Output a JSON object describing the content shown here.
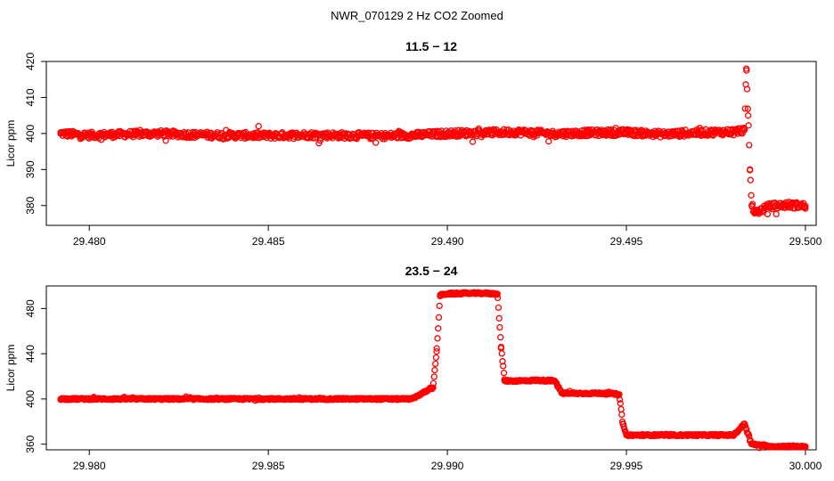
{
  "figure": {
    "title": "NWR_070129  2 Hz CO2 Zoomed"
  },
  "chart_data": [
    {
      "type": "scatter",
      "title": "11.5 − 12",
      "xlabel": "",
      "ylabel": "Licor ppm",
      "xlim": [
        29.4788,
        29.5003
      ],
      "ylim": [
        374.5,
        420
      ],
      "xticks": [
        29.48,
        29.485,
        29.49,
        29.495,
        29.5
      ],
      "xtick_labels": [
        "29.480",
        "29.485",
        "29.490",
        "29.495",
        "29.500"
      ],
      "yticks": [
        380,
        390,
        400,
        410,
        420
      ],
      "ytick_labels": [
        "380",
        "390",
        "400",
        "410",
        "420"
      ],
      "marker": "open-circle",
      "color": "#ff0000",
      "grid": false,
      "series": [
        {
          "x": [
            29.4792,
            29.48,
            29.481,
            29.482,
            29.483,
            29.484,
            29.485,
            29.486,
            29.487,
            29.488,
            29.489,
            29.49,
            29.491,
            29.492,
            29.493,
            29.494,
            29.495,
            29.496,
            29.497,
            29.498,
            29.4983,
            29.49835,
            29.4984,
            29.49845,
            29.4985,
            29.4986,
            29.499,
            29.4995,
            29.5
          ],
          "y": [
            400,
            399.5,
            399.8,
            400,
            399.6,
            399.5,
            399.4,
            399.6,
            399.5,
            399.3,
            399.5,
            400,
            400.2,
            400.4,
            399.9,
            400.2,
            400.3,
            399.8,
            400.2,
            400.5,
            401,
            418,
            405,
            390,
            380,
            378,
            379.8,
            380.2,
            379.9
          ]
        }
      ]
    },
    {
      "type": "scatter",
      "title": "23.5 − 24",
      "xlabel": "",
      "ylabel": "Licor ppm",
      "xlim": [
        29.9788,
        30.0003
      ],
      "ylim": [
        355,
        500
      ],
      "xticks": [
        29.98,
        29.985,
        29.99,
        29.995,
        30.0
      ],
      "xtick_labels": [
        "29.980",
        "29.985",
        "29.990",
        "29.995",
        "30.000"
      ],
      "yticks": [
        360,
        400,
        440,
        480
      ],
      "ytick_labels": [
        "360",
        "400",
        "440",
        "480"
      ],
      "marker": "open-circle",
      "color": "#ff0000",
      "grid": false,
      "series": [
        {
          "x": [
            29.9792,
            29.98,
            29.981,
            29.982,
            29.983,
            29.984,
            29.985,
            29.986,
            29.987,
            29.988,
            29.989,
            29.9896,
            29.9897,
            29.9898,
            29.99,
            29.9905,
            29.991,
            29.9914,
            29.9915,
            29.9916,
            29.992,
            29.9925,
            29.993,
            29.9932,
            29.9935,
            29.994,
            29.9945,
            29.9948,
            29.9949,
            29.995,
            29.9955,
            29.996,
            29.997,
            29.998,
            29.9983,
            29.9985,
            29.999,
            29.9995,
            30.0
          ],
          "y": [
            400,
            400,
            400,
            400,
            400,
            400,
            400,
            400,
            400,
            400,
            400,
            410,
            442,
            492,
            493,
            493.5,
            493.5,
            493,
            446,
            416,
            416,
            416.5,
            416,
            405,
            405,
            405,
            405,
            404,
            378,
            368,
            368,
            368,
            368,
            368,
            378,
            360,
            358,
            358,
            358
          ]
        }
      ]
    }
  ]
}
